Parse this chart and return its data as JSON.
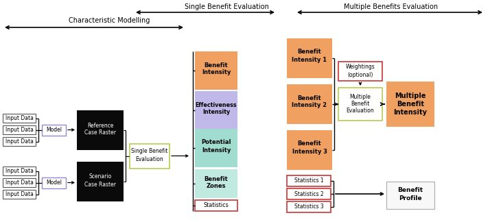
{
  "title_single": "Single Benefit Evaluation",
  "title_multiple": "Multiple Benefits Evaluation",
  "title_char_model": "Characteristic Modelling",
  "bg_color": "#ffffff",
  "orange_color": "#F0A060",
  "purple_color": "#C0B8E8",
  "teal_color": "#A0DDD0",
  "teal_light": "#C0EAE0",
  "green_border": "#B8CC50",
  "red_border": "#CC3333",
  "purple_border": "#9988CC",
  "fig_width": 7.14,
  "fig_height": 3.24
}
